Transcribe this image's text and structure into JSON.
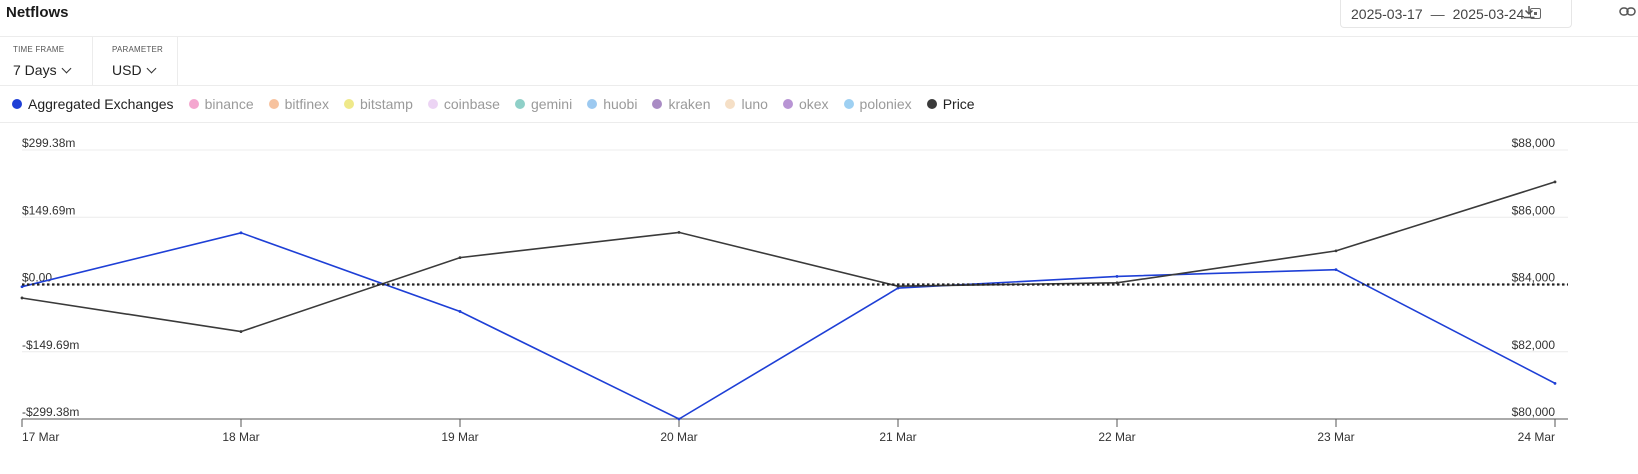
{
  "header": {
    "title": "Netflows",
    "date_start": "2025-03-17",
    "date_sep": "—",
    "date_end": "2025-03-24"
  },
  "controls": {
    "timeframe": {
      "label": "TIME FRAME",
      "value": "7 Days"
    },
    "parameter": {
      "label": "PARAMETER",
      "value": "USD"
    }
  },
  "legend": [
    {
      "name": "Aggregated Exchanges",
      "color": "#1e3fd6",
      "active": true
    },
    {
      "name": "binance",
      "color": "#f4a6cf",
      "active": false
    },
    {
      "name": "bitfinex",
      "color": "#f7c29e",
      "active": false
    },
    {
      "name": "bitstamp",
      "color": "#efe98a",
      "active": false
    },
    {
      "name": "coinbase",
      "color": "#ecd4f4",
      "active": false
    },
    {
      "name": "gemini",
      "color": "#8fd0c8",
      "active": false
    },
    {
      "name": "huobi",
      "color": "#9cc9f0",
      "active": false
    },
    {
      "name": "kraken",
      "color": "#a98bc4",
      "active": false
    },
    {
      "name": "luno",
      "color": "#f5dfc6",
      "active": false
    },
    {
      "name": "okex",
      "color": "#b894d4",
      "active": false
    },
    {
      "name": "poloniex",
      "color": "#9ed0f2",
      "active": false
    },
    {
      "name": "Price",
      "color": "#3a3a3a",
      "active": true
    }
  ],
  "chart_data": {
    "type": "line",
    "x": [
      "17 Mar",
      "18 Mar",
      "19 Mar",
      "20 Mar",
      "21 Mar",
      "22 Mar",
      "23 Mar",
      "24 Mar"
    ],
    "series": [
      {
        "name": "Aggregated Exchanges",
        "axis": "left",
        "color": "#1e3fd6",
        "values": [
          -5,
          115,
          -60,
          -299.38,
          -8,
          18,
          33,
          -220
        ]
      },
      {
        "name": "Price",
        "axis": "right",
        "color": "#3a3a3a",
        "values": [
          83600,
          82600,
          84800,
          85550,
          83950,
          84050,
          85000,
          87050
        ]
      }
    ],
    "y_left": {
      "ticks": [
        "$299.38m",
        "$149.69m",
        "$0.00",
        "-$149.69m",
        "-$299.38m"
      ],
      "range": [
        -299.38,
        299.38
      ]
    },
    "y_right": {
      "ticks": [
        "$88,000",
        "$86,000",
        "$84,000",
        "$82,000",
        "$80,000"
      ],
      "range": [
        80000,
        88000
      ]
    },
    "zero_line": "dotted",
    "grid": true
  }
}
